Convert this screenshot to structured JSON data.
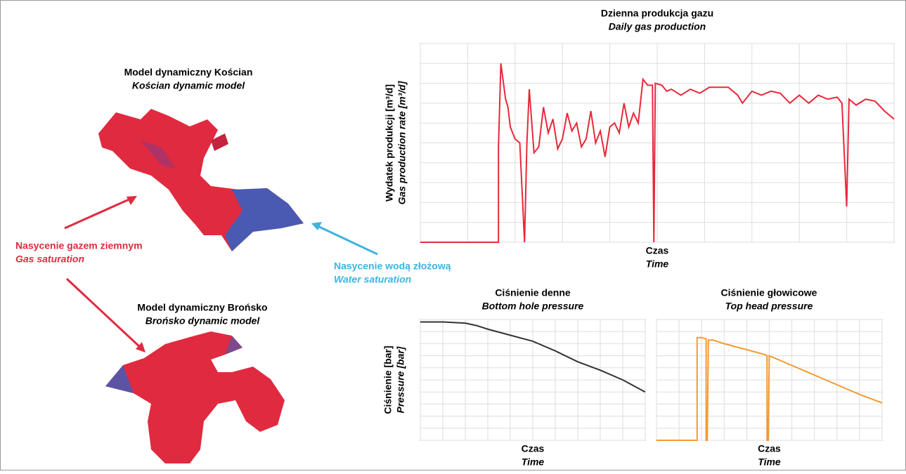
{
  "models": [
    {
      "title": "Model dynamiczny Kościan",
      "subtitle": "Kościan dynamic model"
    },
    {
      "title": "Model dynamiczny Brońsko",
      "subtitle": "Brońsko dynamic model"
    }
  ],
  "annotations": [
    {
      "label": "Nasycenie gazem ziemnym",
      "sublabel": "Gas saturation"
    },
    {
      "label": "Nasycenie wodą złożową",
      "sublabel": "Water saturation"
    }
  ],
  "chart_data": [
    {
      "type": "line",
      "title": "Dzienna produkcja gazu",
      "subtitle": "Daily gas production",
      "x_label": "Czas",
      "x_sublabel": "Time",
      "y_label": "Wydatek produkcji [m³/d]",
      "y_sublabel": "Gas production rate [m³/d]",
      "color": "#e8283a",
      "grid": true,
      "xlim": [
        0,
        100
      ],
      "ylim": [
        0,
        100
      ],
      "xticks": [
        0,
        10,
        20,
        30,
        40,
        50,
        60,
        70,
        80,
        90,
        100
      ],
      "yticks": [
        0,
        10,
        20,
        30,
        40,
        50,
        60,
        70,
        80,
        90,
        100
      ],
      "x": [
        0,
        16.5,
        16.5,
        17,
        18,
        18.5,
        19,
        20,
        21,
        22,
        22.5,
        23,
        24,
        25,
        26,
        27,
        28,
        29,
        30,
        31,
        32,
        33,
        34,
        35,
        36,
        37,
        38,
        39,
        40,
        41,
        42,
        43,
        44,
        45,
        46,
        47,
        48,
        49,
        49.3,
        49.6,
        51,
        52,
        53,
        55,
        57,
        59,
        61,
        63,
        65,
        67,
        68,
        70,
        72,
        74,
        76,
        78,
        80,
        82,
        84,
        86,
        88,
        89,
        90,
        90.5,
        92,
        94,
        96,
        98,
        100
      ],
      "values": [
        0,
        0,
        48,
        90,
        72,
        68,
        58,
        52,
        50,
        0,
        50,
        77,
        45,
        48,
        68,
        55,
        62,
        47,
        52,
        65,
        56,
        60,
        48,
        52,
        66,
        50,
        56,
        43,
        58,
        60,
        55,
        70,
        58,
        65,
        60,
        82,
        79,
        79,
        0,
        80,
        79,
        76,
        77,
        74,
        77,
        75,
        78,
        78,
        78,
        74,
        70,
        76,
        74,
        76,
        75,
        70,
        74,
        70,
        74,
        72,
        73,
        70,
        18,
        72,
        69,
        72,
        71,
        66,
        62
      ]
    },
    {
      "type": "line",
      "title": "Ciśnienie denne",
      "subtitle": "Bottom hole pressure",
      "x_label": "Czas",
      "x_sublabel": "Time",
      "y_label": "Ciśnienie [bar]",
      "y_sublabel": "Pressure [bar]",
      "color": "#333333",
      "grid": true,
      "xlim": [
        0,
        100
      ],
      "ylim": [
        0,
        100
      ],
      "xticks": [
        0,
        10,
        20,
        30,
        40,
        50,
        60,
        70,
        80,
        90,
        100
      ],
      "yticks": [
        0,
        10,
        20,
        30,
        40,
        50,
        60,
        70,
        80,
        90,
        100
      ],
      "x": [
        0,
        10,
        20,
        25,
        30,
        40,
        50,
        60,
        70,
        80,
        90,
        100
      ],
      "values": [
        98,
        98,
        97,
        95,
        92,
        87,
        82,
        74,
        65,
        58,
        50,
        40
      ]
    },
    {
      "type": "line",
      "title": "Ciśnienie głowicowe",
      "subtitle": "Top head pressure",
      "x_label": "Czas",
      "x_sublabel": "Time",
      "color": "#f39a33",
      "grid": true,
      "xlim": [
        0,
        100
      ],
      "ylim": [
        0,
        100
      ],
      "xticks": [
        0,
        10,
        20,
        30,
        40,
        50,
        60,
        70,
        80,
        90,
        100
      ],
      "yticks": [
        0,
        10,
        20,
        30,
        40,
        50,
        60,
        70,
        80,
        90,
        100
      ],
      "x": [
        0,
        18,
        18,
        20,
        22,
        22,
        22.5,
        23,
        25,
        30,
        40,
        48,
        49,
        49,
        49.5,
        50,
        60,
        70,
        80,
        90,
        100
      ],
      "values": [
        0,
        0,
        85,
        85,
        84,
        0,
        0,
        83,
        83,
        80,
        75,
        71,
        70,
        0,
        0,
        70,
        62,
        54,
        46,
        38,
        31
      ]
    }
  ]
}
